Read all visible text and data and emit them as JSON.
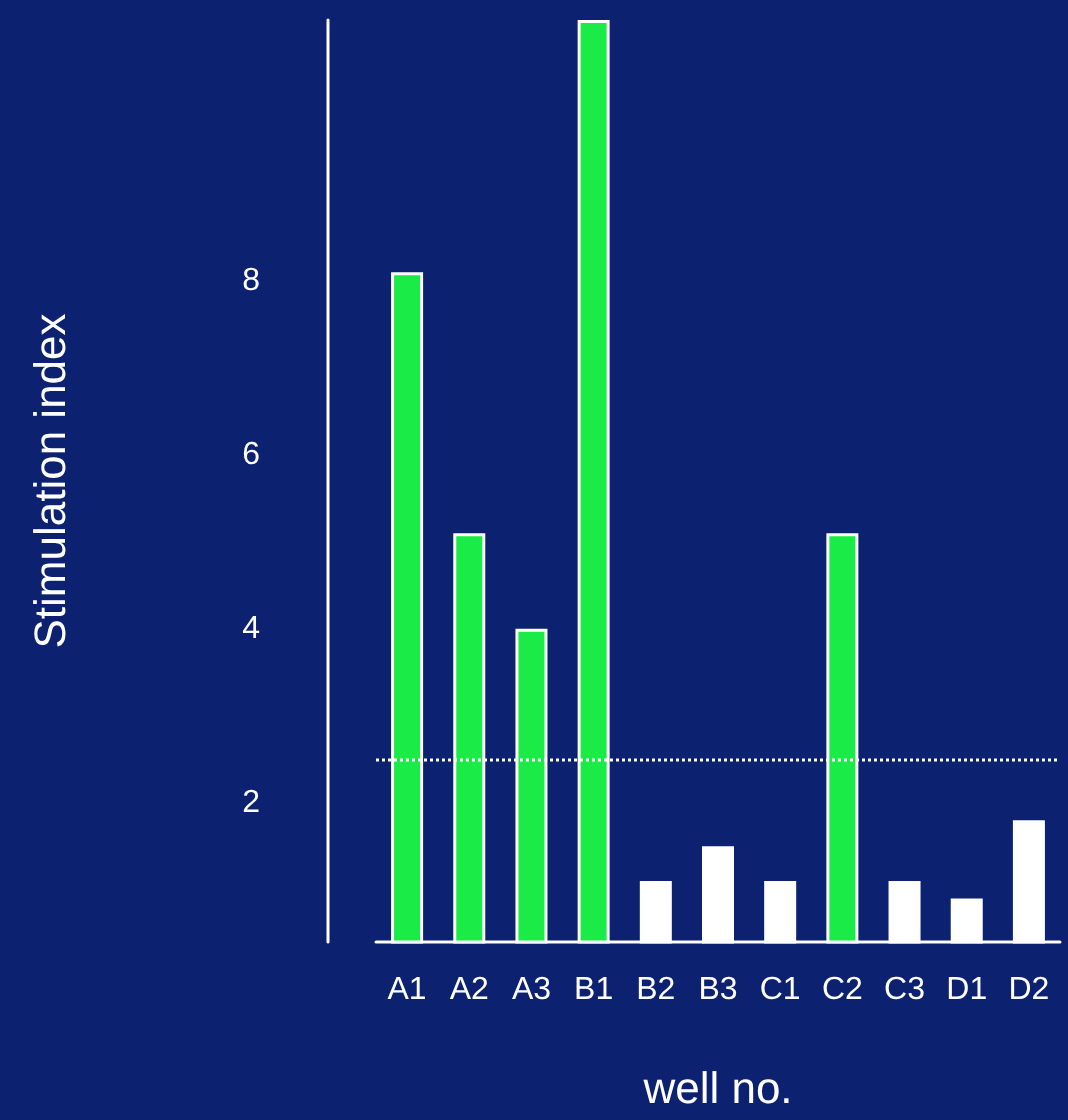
{
  "chart_data": {
    "type": "bar",
    "xlabel": "well no.",
    "ylabel": "Stimulation index",
    "categories": [
      "A1",
      "A2",
      "A3",
      "B1",
      "B2",
      "B3",
      "C1",
      "C2",
      "C3",
      "D1",
      "D2"
    ],
    "values": [
      8.1,
      5.1,
      4.0,
      11.0,
      1.1,
      1.5,
      1.1,
      5.1,
      1.1,
      0.9,
      1.8
    ],
    "colors": [
      "#1aeb46",
      "#1aeb46",
      "#1aeb46",
      "#1aeb46",
      "#ffffff",
      "#ffffff",
      "#ffffff",
      "#1aeb46",
      "#ffffff",
      "#ffffff",
      "#ffffff"
    ],
    "ylim": [
      0.4,
      11
    ],
    "yticks": [
      2,
      4,
      6,
      8
    ],
    "grid": false,
    "ref_lines": [
      {
        "axis": "y",
        "value": 2.5,
        "color": "#ffffff",
        "line_style": "dotted"
      }
    ]
  }
}
